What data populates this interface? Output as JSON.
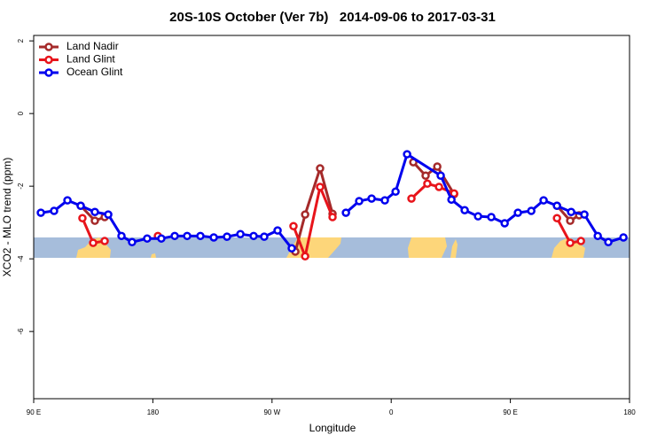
{
  "chart_data": {
    "type": "line",
    "title": "20S-10S October (Ver 7b)   2014-09-06 to 2017-03-31",
    "xlabel": "Longitude",
    "ylabel": "XCO2 - MLO trend (ppm)",
    "xlim": [
      90,
      540
    ],
    "ylim": [
      -7.85,
      2.15
    ],
    "xticks": [
      {
        "value": 90,
        "label": "90 E"
      },
      180,
      {
        "value": 270,
        "label": "90 W"
      },
      {
        "value": 360,
        "label": "0"
      },
      {
        "value": 450,
        "label": "90 E"
      },
      {
        "value": 540,
        "label": "180"
      }
    ],
    "yticks": [
      2,
      0,
      -2,
      -4,
      -6
    ],
    "legend": "top-left",
    "series": [
      {
        "name": "Land Nadir",
        "color": "#a52a2a",
        "x": [
          125.5,
          136.2,
          143.6,
          200,
          287.6,
          295.0,
          306.3,
          315.7,
          350,
          376.7,
          386.0,
          394.8,
          407.5,
          450,
          485.2,
          495.2,
          501.9
        ],
        "values": [
          -2.54,
          -2.95,
          -2.85,
          null,
          -3.8,
          -2.78,
          -1.51,
          -2.76,
          null,
          -1.34,
          -1.71,
          -1.46,
          -2.22,
          null,
          -2.54,
          -2.95,
          -2.8
        ]
      },
      {
        "name": "Land Glint",
        "color": "#e8141b",
        "x": [
          126.8,
          134.9,
          143.6,
          160,
          183.8,
          230,
          286.2,
          295.0,
          306.3,
          315.7,
          350,
          375.3,
          387.3,
          396.1,
          407.5,
          450,
          485.2,
          495.2,
          503.3
        ],
        "values": [
          -2.88,
          -3.56,
          -3.51,
          null,
          -3.37,
          null,
          -3.1,
          -3.93,
          -2.02,
          -2.85,
          null,
          -2.34,
          -1.93,
          -2.02,
          -2.2,
          null,
          -2.88,
          -3.56,
          -3.51
        ]
      },
      {
        "name": "Ocean Glint",
        "color": "#0000ee",
        "x": [
          95.4,
          105.4,
          115.5,
          125.5,
          136.2,
          146.3,
          156.3,
          164.3,
          175.7,
          186.4,
          196.5,
          205.9,
          215.9,
          226.0,
          236.0,
          246.1,
          256.1,
          264.1,
          274.2,
          284.9,
          305,
          325.8,
          335.8,
          345.2,
          355.2,
          363.3,
          372.0,
          397.4,
          405.5,
          415.5,
          425.6,
          435.6,
          445.7,
          455.7,
          465.8,
          475.1,
          485.2,
          495.9,
          505.9,
          516.0,
          524.0,
          535.4
        ],
        "values": [
          -2.73,
          -2.68,
          -2.39,
          -2.54,
          -2.71,
          -2.78,
          -3.37,
          -3.54,
          -3.44,
          -3.44,
          -3.37,
          -3.37,
          -3.37,
          -3.41,
          -3.39,
          -3.32,
          -3.37,
          -3.39,
          -3.22,
          -3.71,
          null,
          -2.73,
          -2.41,
          -2.34,
          -2.39,
          -2.15,
          -1.12,
          -1.71,
          -2.37,
          -2.66,
          -2.83,
          -2.85,
          -3.02,
          -2.73,
          -2.68,
          -2.39,
          -2.54,
          -2.71,
          -2.78,
          -3.37,
          -3.54,
          -3.41
        ]
      }
    ]
  }
}
